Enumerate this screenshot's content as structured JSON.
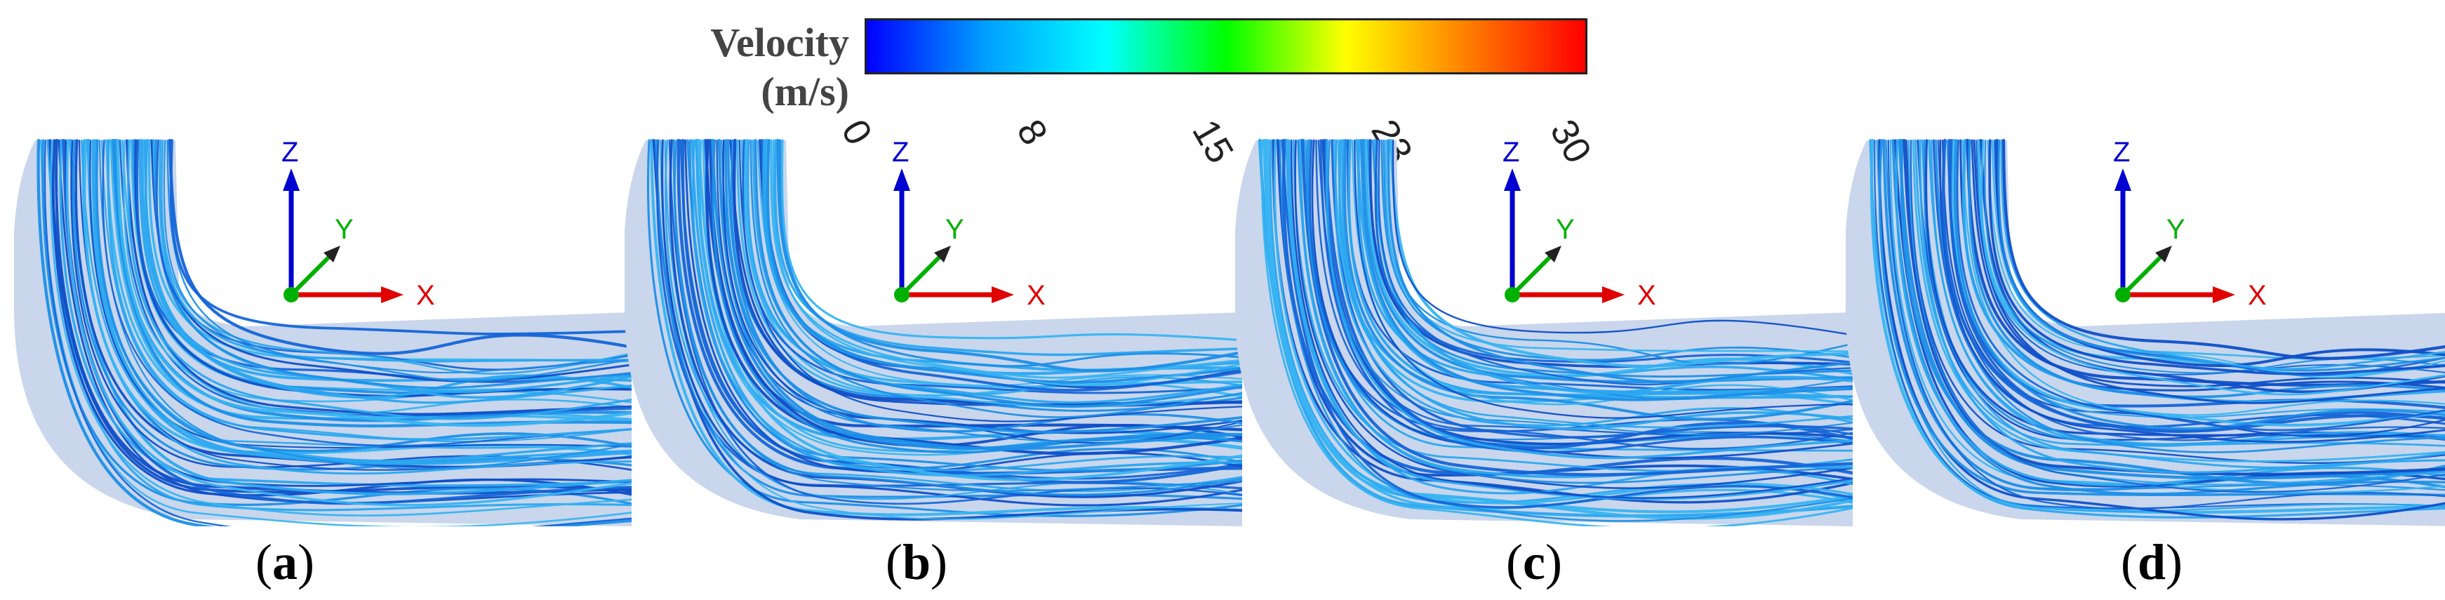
{
  "legend": {
    "title_line1": "Velocity",
    "title_line2": "(m/s)",
    "ticks": [
      "0",
      "8",
      "15",
      "23",
      "30"
    ],
    "range": [
      0,
      30
    ],
    "colors": [
      "#0000ff",
      "#00a0ff",
      "#00ffff",
      "#00ff00",
      "#ffff00",
      "#ff8000",
      "#ff0000"
    ]
  },
  "axes_labels": {
    "x": "X",
    "y": "Y",
    "z": "Z"
  },
  "axes_colors": {
    "x": "#e00000",
    "y": "#00b000",
    "z": "#0000d0"
  },
  "panels": [
    {
      "id": "a",
      "label_open": "(",
      "label_letter": "a",
      "label_close": ")"
    },
    {
      "id": "b",
      "label_open": "(",
      "label_letter": "b",
      "label_close": ")"
    },
    {
      "id": "c",
      "label_open": "(",
      "label_letter": "c",
      "label_close": ")"
    },
    {
      "id": "d",
      "label_open": "(",
      "label_letter": "d",
      "label_close": ")"
    }
  ],
  "pipe_color": "#c9d6ec",
  "streamline_colors": [
    "#1c8fe8",
    "#2aa6f0",
    "#1565d8",
    "#37b4f2",
    "#0f4fc8"
  ]
}
